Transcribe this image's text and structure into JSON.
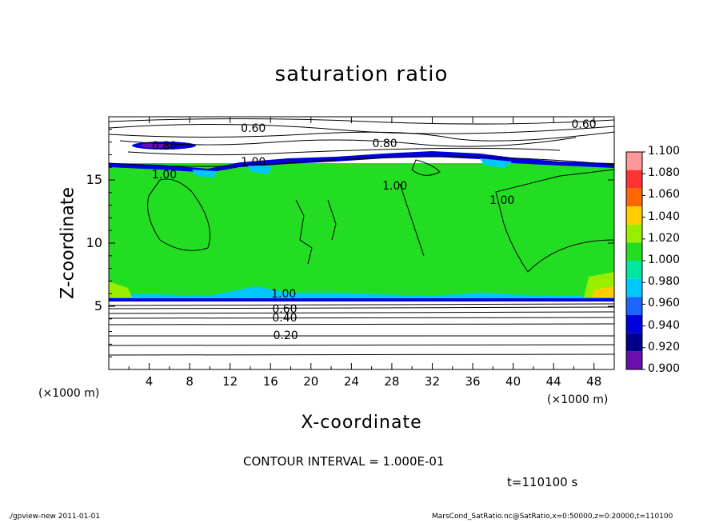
{
  "chart_data": {
    "type": "heatmap",
    "title": "saturation ratio",
    "xlabel": "X-coordinate",
    "ylabel": "Z-coordinate",
    "x_unit": "(×1000 m)",
    "y_unit": "(×1000 m)",
    "xlim": [
      0,
      50
    ],
    "ylim": [
      0,
      20
    ],
    "x_ticks": [
      4,
      8,
      12,
      16,
      20,
      24,
      28,
      32,
      36,
      40,
      44,
      48
    ],
    "y_ticks": [
      5,
      10,
      15
    ],
    "colorbar": {
      "levels": [
        0.9,
        0.92,
        0.94,
        0.96,
        0.98,
        1.0,
        1.02,
        1.04,
        1.06,
        1.08,
        1.1
      ],
      "labels": [
        "0.900",
        "0.920",
        "0.940",
        "0.960",
        "0.980",
        "1.000",
        "1.020",
        "1.040",
        "1.060",
        "1.080",
        "1.100"
      ],
      "colors": [
        "#6a0dad",
        "#00008b",
        "#0000dd",
        "#1e64ff",
        "#00c8ff",
        "#00e6a0",
        "#22dd22",
        "#99ee00",
        "#ffcc00",
        "#ff6600",
        "#ff3333",
        "#ff9999"
      ]
    },
    "contour_labels": [
      {
        "text": "0.60",
        "x": 14.3,
        "z": 19.0
      },
      {
        "text": "0.60",
        "x": 47.0,
        "z": 19.3
      },
      {
        "text": "0.80",
        "x": 5.5,
        "z": 17.6
      },
      {
        "text": "0.80",
        "x": 27.3,
        "z": 17.8
      },
      {
        "text": "1.00",
        "x": 5.5,
        "z": 15.3
      },
      {
        "text": "1.00",
        "x": 14.3,
        "z": 16.3
      },
      {
        "text": "1.00",
        "x": 28.3,
        "z": 14.4
      },
      {
        "text": "1.00",
        "x": 38.9,
        "z": 13.3
      },
      {
        "text": "1.00",
        "x": 17.3,
        "z": 5.9
      },
      {
        "text": "0.60",
        "x": 17.4,
        "z": 4.7
      },
      {
        "text": "0.40",
        "x": 17.4,
        "z": 4.0
      },
      {
        "text": "0.20",
        "x": 17.5,
        "z": 2.6
      }
    ],
    "contour_interval": "CONTOUR INTERVAL = 1.000E-01",
    "time_label": "t=110100  s"
  },
  "footer": {
    "left": "./gpview-new   2011-01-01",
    "right": "MarsCond_SatRatio.nc@SatRatio,x=0:50000,z=0:20000,t=110100"
  }
}
